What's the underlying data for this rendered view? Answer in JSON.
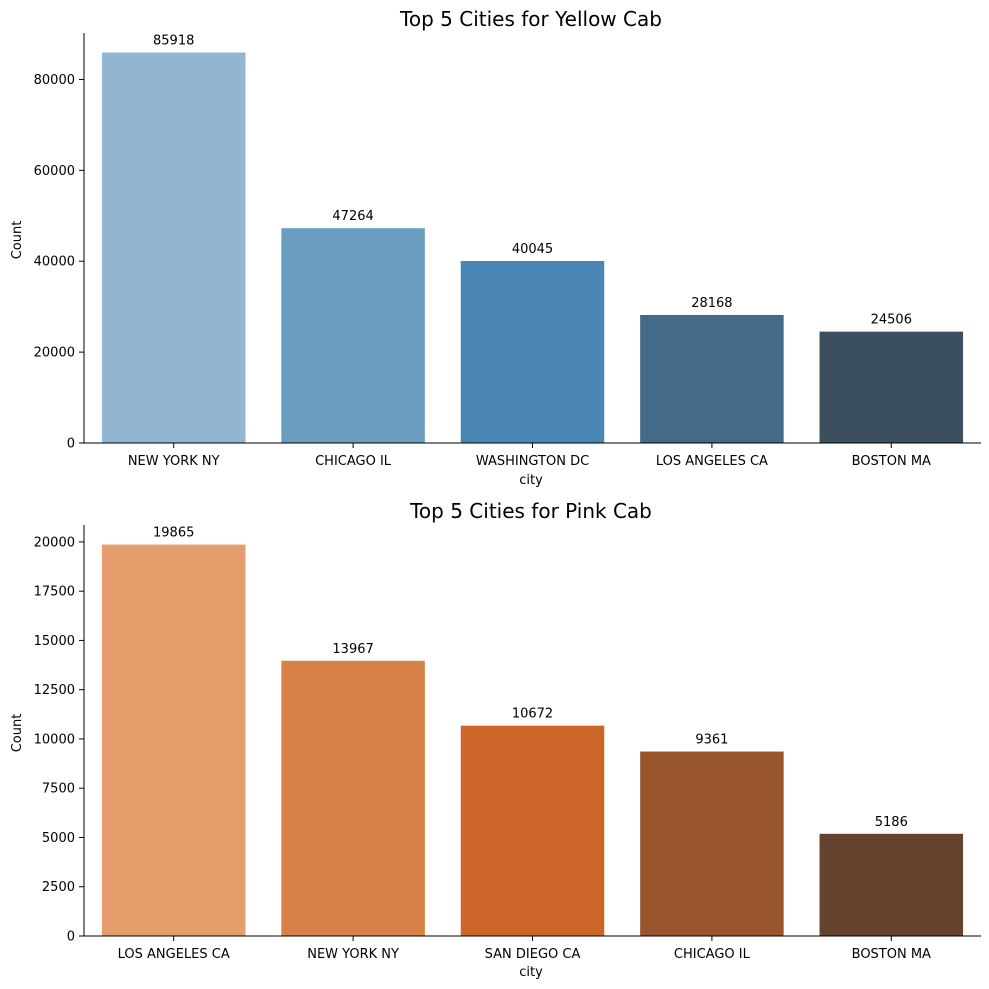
{
  "chart_data": [
    {
      "type": "bar",
      "title": "Top 5 Cities for Yellow Cab",
      "xlabel": "city",
      "ylabel": "Count",
      "categories": [
        "NEW YORK NY",
        "CHICAGO IL",
        "WASHINGTON DC",
        "LOS ANGELES CA",
        "BOSTON MA"
      ],
      "values": [
        85918,
        47264,
        40045,
        28168,
        24506
      ],
      "data_labels": [
        "85918",
        "47264",
        "40045",
        "28168",
        "24506"
      ],
      "colors": [
        "#92b6d1",
        "#6a9dc0",
        "#4a86b3",
        "#436a88",
        "#3c4f5e"
      ],
      "ylim": [
        0,
        90218
      ],
      "yticks": [
        0,
        20000,
        40000,
        60000,
        80000
      ],
      "ytick_labels": [
        "0",
        "20000",
        "40000",
        "60000",
        "80000"
      ],
      "grid": false,
      "legend": "none"
    },
    {
      "type": "bar",
      "title": "Top 5 Cities for Pink Cab",
      "xlabel": "city",
      "ylabel": "Count",
      "categories": [
        "LOS ANGELES CA",
        "NEW YORK NY",
        "SAN DIEGO CA",
        "CHICAGO IL",
        "BOSTON MA"
      ],
      "values": [
        19865,
        13967,
        10672,
        9361,
        5186
      ],
      "data_labels": [
        "19865",
        "13967",
        "10672",
        "9361",
        "5186"
      ],
      "colors": [
        "#e49d6b",
        "#d88249",
        "#cb6628",
        "#99552e",
        "#66432f"
      ],
      "ylim": [
        0,
        20858
      ],
      "yticks": [
        0,
        2500,
        5000,
        7500,
        10000,
        12500,
        15000,
        17500,
        20000
      ],
      "ytick_labels": [
        "0",
        "2500",
        "5000",
        "7500",
        "10000",
        "12500",
        "15000",
        "17500",
        "20000"
      ],
      "grid": false,
      "legend": "none"
    }
  ]
}
